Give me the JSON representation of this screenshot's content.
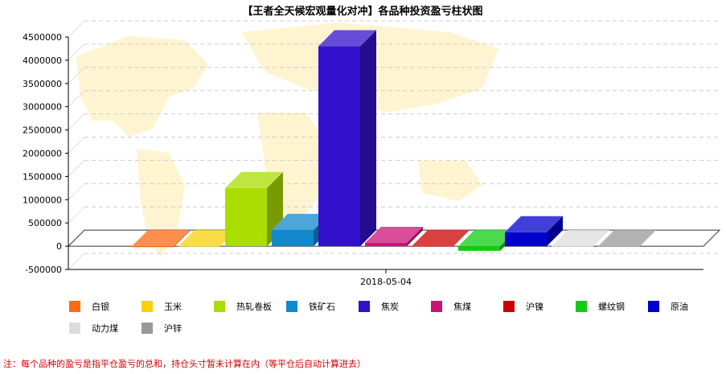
{
  "note": "注：每个品种的盈亏是指平仓盈亏的总和，持仓头寸暂未计算在内（等平仓后自动计算进去）",
  "chart_data": {
    "type": "bar",
    "title": "【王者全天候宏观量化对冲】各品种投资盈亏柱状图",
    "xlabel": "",
    "ylabel": "",
    "categories": [
      "2018-05-04"
    ],
    "ylim": [
      -500000,
      4500000
    ],
    "yticks": [
      -500000,
      0,
      500000,
      1000000,
      1500000,
      2000000,
      2500000,
      3000000,
      3500000,
      4000000,
      4500000
    ],
    "grid": true,
    "legend_position": "bottom",
    "series": [
      {
        "name": "白银",
        "color": "#ff6a13",
        "values": [
          -20000
        ]
      },
      {
        "name": "玉米",
        "color": "#f5d20a",
        "values": [
          0
        ]
      },
      {
        "name": "热轧卷板",
        "color": "#aadd00",
        "values": [
          1250000
        ]
      },
      {
        "name": "铁矿石",
        "color": "#1188cc",
        "values": [
          350000
        ]
      },
      {
        "name": "焦炭",
        "color": "#3311cc",
        "values": [
          4300000
        ]
      },
      {
        "name": "焦煤",
        "color": "#cc1177",
        "values": [
          70000
        ]
      },
      {
        "name": "沪镍",
        "color": "#cc0000",
        "values": [
          0
        ]
      },
      {
        "name": "螺纹钢",
        "color": "#11cc11",
        "values": [
          -100000
        ]
      },
      {
        "name": "原油",
        "color": "#0000cc",
        "values": [
          300000
        ]
      },
      {
        "name": "动力煤",
        "color": "#dddddd",
        "values": [
          0
        ]
      },
      {
        "name": "沪锌",
        "color": "#999999",
        "values": [
          0
        ]
      }
    ]
  }
}
